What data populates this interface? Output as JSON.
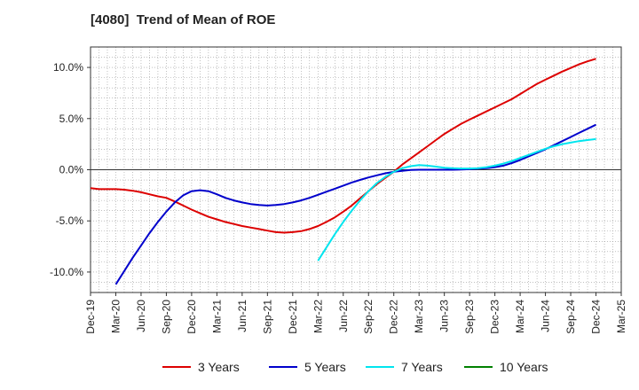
{
  "chart_data": {
    "type": "line",
    "title": "[4080]  Trend of Mean of ROE",
    "xlabel": "",
    "ylabel": "",
    "x_ticks": [
      "Dec-19",
      "Mar-20",
      "Jun-20",
      "Sep-20",
      "Dec-20",
      "Mar-21",
      "Jun-21",
      "Sep-21",
      "Dec-21",
      "Mar-22",
      "Jun-22",
      "Sep-22",
      "Dec-22",
      "Mar-23",
      "Jun-23",
      "Sep-23",
      "Dec-23",
      "Mar-24",
      "Jun-24",
      "Sep-24",
      "Dec-24",
      "Mar-25"
    ],
    "y_ticks": [
      10,
      5,
      0,
      -5,
      -10
    ],
    "y_tick_labels": [
      "10.0%",
      "5.0%",
      "0.0%",
      "-5.0%",
      "-10.0%"
    ],
    "ylim": [
      -12,
      12
    ],
    "grid": true,
    "legend_position": "bottom",
    "series": [
      {
        "name": "3 Years",
        "color": "#dd0000",
        "x": [
          "Dec-19",
          "Jan-20",
          "Feb-20",
          "Mar-20",
          "Apr-20",
          "May-20",
          "Jun-20",
          "Jul-20",
          "Aug-20",
          "Sep-20",
          "Oct-20",
          "Nov-20",
          "Dec-20",
          "Jan-21",
          "Feb-21",
          "Mar-21",
          "Apr-21",
          "May-21",
          "Jun-21",
          "Jul-21",
          "Aug-21",
          "Sep-21",
          "Oct-21",
          "Nov-21",
          "Dec-21",
          "Jan-22",
          "Feb-22",
          "Mar-22",
          "Apr-22",
          "May-22",
          "Jun-22",
          "Jul-22",
          "Aug-22",
          "Sep-22",
          "Oct-22",
          "Nov-22",
          "Dec-22",
          "Jan-23",
          "Feb-23",
          "Mar-23",
          "Apr-23",
          "May-23",
          "Jun-23",
          "Jul-23",
          "Aug-23",
          "Sep-23",
          "Oct-23",
          "Nov-23",
          "Dec-23",
          "Jan-24",
          "Feb-24",
          "Mar-24",
          "Apr-24",
          "May-24",
          "Jun-24",
          "Jul-24",
          "Aug-24",
          "Sep-24",
          "Oct-24",
          "Nov-24",
          "Dec-24"
        ],
        "values": [
          -1.8,
          -1.9,
          -1.9,
          -1.9,
          -1.95,
          -2.05,
          -2.2,
          -2.4,
          -2.6,
          -2.75,
          -3.1,
          -3.5,
          -3.9,
          -4.25,
          -4.6,
          -4.85,
          -5.1,
          -5.3,
          -5.5,
          -5.65,
          -5.8,
          -5.95,
          -6.1,
          -6.15,
          -6.1,
          -6.0,
          -5.8,
          -5.5,
          -5.1,
          -4.65,
          -4.1,
          -3.5,
          -2.8,
          -2.1,
          -1.4,
          -0.8,
          -0.2,
          0.5,
          1.1,
          1.7,
          2.3,
          2.9,
          3.5,
          4.0,
          4.5,
          4.9,
          5.3,
          5.7,
          6.1,
          6.5,
          6.9,
          7.4,
          7.9,
          8.4,
          8.8,
          9.2,
          9.6,
          9.95,
          10.3,
          10.6,
          10.85
        ]
      },
      {
        "name": "5 Years",
        "color": "#0000cc",
        "x": [
          "Mar-20",
          "Apr-20",
          "May-20",
          "Jun-20",
          "Jul-20",
          "Aug-20",
          "Sep-20",
          "Oct-20",
          "Nov-20",
          "Dec-20",
          "Jan-21",
          "Feb-21",
          "Mar-21",
          "Apr-21",
          "May-21",
          "Jun-21",
          "Jul-21",
          "Aug-21",
          "Sep-21",
          "Oct-21",
          "Nov-21",
          "Dec-21",
          "Jan-22",
          "Feb-22",
          "Mar-22",
          "Apr-22",
          "May-22",
          "Jun-22",
          "Jul-22",
          "Aug-22",
          "Sep-22",
          "Oct-22",
          "Nov-22",
          "Dec-22",
          "Jan-23",
          "Feb-23",
          "Mar-23",
          "Apr-23",
          "May-23",
          "Jun-23",
          "Jul-23",
          "Aug-23",
          "Sep-23",
          "Oct-23",
          "Nov-23",
          "Dec-23",
          "Jan-24",
          "Feb-24",
          "Mar-24",
          "Apr-24",
          "May-24",
          "Jun-24",
          "Jul-24",
          "Aug-24",
          "Sep-24",
          "Oct-24",
          "Nov-24",
          "Dec-24"
        ],
        "values": [
          -11.2,
          -9.9,
          -8.6,
          -7.4,
          -6.2,
          -5.1,
          -4.1,
          -3.2,
          -2.5,
          -2.1,
          -2.0,
          -2.1,
          -2.4,
          -2.75,
          -3.0,
          -3.2,
          -3.35,
          -3.45,
          -3.5,
          -3.45,
          -3.35,
          -3.2,
          -3.0,
          -2.75,
          -2.45,
          -2.15,
          -1.85,
          -1.55,
          -1.25,
          -1.0,
          -0.75,
          -0.55,
          -0.35,
          -0.2,
          -0.1,
          -0.03,
          0.0,
          0.0,
          0.0,
          0.0,
          0.0,
          0.02,
          0.05,
          0.1,
          0.15,
          0.25,
          0.4,
          0.65,
          0.95,
          1.3,
          1.65,
          2.0,
          2.4,
          2.8,
          3.2,
          3.6,
          4.0,
          4.4
        ]
      },
      {
        "name": "7 Years",
        "color": "#00e5ee",
        "x": [
          "Mar-22",
          "Apr-22",
          "May-22",
          "Jun-22",
          "Jul-22",
          "Aug-22",
          "Sep-22",
          "Oct-22",
          "Nov-22",
          "Dec-22",
          "Jan-23",
          "Feb-23",
          "Mar-23",
          "Apr-23",
          "May-23",
          "Jun-23",
          "Jul-23",
          "Aug-23",
          "Sep-23",
          "Oct-23",
          "Nov-23",
          "Dec-23",
          "Jan-24",
          "Feb-24",
          "Mar-24",
          "Apr-24",
          "May-24",
          "Jun-24",
          "Jul-24",
          "Aug-24",
          "Sep-24",
          "Oct-24",
          "Nov-24",
          "Dec-24"
        ],
        "values": [
          -8.9,
          -7.6,
          -6.3,
          -5.1,
          -4.0,
          -3.0,
          -2.1,
          -1.3,
          -0.7,
          -0.2,
          0.15,
          0.35,
          0.45,
          0.4,
          0.3,
          0.2,
          0.15,
          0.12,
          0.12,
          0.15,
          0.25,
          0.4,
          0.6,
          0.85,
          1.15,
          1.45,
          1.75,
          2.05,
          2.3,
          2.5,
          2.65,
          2.8,
          2.9,
          3.0
        ]
      },
      {
        "name": "10 Years",
        "color": "#008000",
        "x": [],
        "values": []
      }
    ]
  }
}
